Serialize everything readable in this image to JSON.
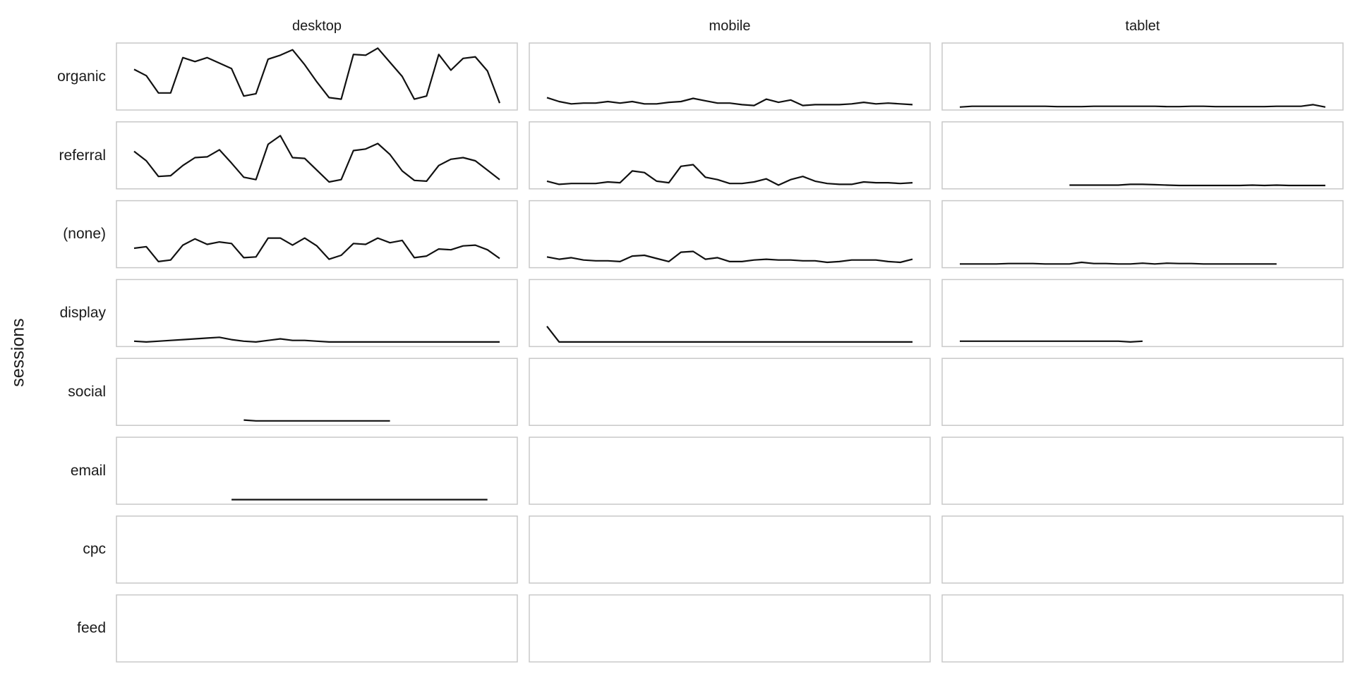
{
  "chart_data": {
    "type": "line",
    "layout": "facet-grid",
    "ylabel": "sessions",
    "xlabel": "",
    "line_color": "#111111",
    "frame_color": "#c8c8c8",
    "shared_y": true,
    "ylim": [
      0,
      80
    ],
    "x_count": 31,
    "columns": [
      "desktop",
      "mobile",
      "tablet"
    ],
    "rows": [
      "organic",
      "referral",
      "(none)",
      "display",
      "social",
      "email",
      "cpc",
      "feed"
    ],
    "series": {
      "organic": {
        "desktop": [
          50,
          42,
          20,
          20,
          65,
          60,
          65,
          58,
          51,
          16,
          19,
          63,
          68,
          75,
          56,
          34,
          14,
          12,
          69,
          68,
          77,
          59,
          41,
          12,
          16,
          69,
          49,
          64,
          66,
          48,
          7
        ],
        "mobile": [
          14,
          9,
          6,
          7,
          7,
          9,
          7,
          9,
          6,
          6,
          8,
          9,
          13,
          10,
          7,
          7,
          5,
          4,
          12,
          8,
          11,
          4,
          5,
          5,
          5,
          6,
          8,
          6,
          7,
          6,
          5
        ],
        "tablet": [
          2,
          3,
          3,
          3,
          3,
          3,
          3,
          3,
          2.5,
          2.5,
          2.5,
          3,
          3,
          3,
          3,
          3,
          3,
          2.5,
          2.5,
          3,
          3,
          2.5,
          2.5,
          2.5,
          2.5,
          2.5,
          3,
          3,
          3,
          5,
          2
        ]
      },
      "referral": {
        "desktop": [
          46,
          34,
          14,
          15,
          28,
          38,
          39,
          48,
          31,
          13,
          10,
          55,
          66,
          38,
          37,
          22,
          7,
          10,
          47,
          49,
          56,
          42,
          21,
          9,
          8,
          28,
          36,
          38,
          34,
          22,
          10
        ],
        "mobile": [
          8,
          4,
          5,
          5,
          5,
          7,
          6,
          21,
          19,
          8,
          6,
          27,
          29,
          13,
          10,
          5,
          5,
          7,
          11,
          3,
          10,
          14,
          8,
          5,
          4,
          4,
          7,
          6,
          6,
          5,
          6
        ],
        "tablet": [
          null,
          null,
          null,
          null,
          null,
          null,
          null,
          null,
          null,
          3,
          3,
          3,
          3,
          3,
          4,
          4,
          3.5,
          3,
          2.5,
          2.5,
          2.5,
          2.5,
          2.5,
          2.5,
          3,
          2.5,
          3,
          2.5,
          2.5,
          2.5,
          2.5
        ]
      },
      "(none)": {
        "desktop": [
          23,
          25,
          6,
          8,
          27,
          35,
          28,
          31,
          29,
          11,
          12,
          36,
          36,
          27,
          36,
          26,
          9,
          14,
          29,
          28,
          36,
          30,
          33,
          11,
          13,
          22,
          21,
          26,
          27,
          21,
          10
        ],
        "mobile": [
          12,
          9,
          11,
          8,
          7,
          7,
          6,
          13,
          14,
          10,
          6,
          18,
          19,
          9,
          11,
          6,
          6,
          8,
          9,
          8,
          8,
          7,
          7,
          5,
          6,
          8,
          8,
          8,
          6,
          5,
          9
        ],
        "tablet": [
          3,
          3,
          3,
          3,
          3.5,
          3.5,
          3.5,
          3,
          3,
          3,
          5,
          3.5,
          3.5,
          3,
          3,
          4,
          3,
          4,
          3.5,
          3.5,
          3,
          3,
          3,
          3,
          3,
          3,
          3,
          null,
          null,
          null,
          null
        ]
      },
      "display": {
        "desktop": [
          5,
          4,
          5,
          6,
          7,
          8,
          9,
          10,
          7,
          5,
          4,
          6,
          8,
          6,
          6,
          5,
          4,
          4,
          4,
          4,
          4,
          4,
          4,
          4,
          4,
          4,
          4,
          4,
          4,
          4,
          4
        ],
        "mobile": [
          24,
          4,
          4,
          4,
          4,
          4,
          4,
          4,
          4,
          4,
          4,
          4,
          4,
          4,
          4,
          4,
          4,
          4,
          4,
          4,
          4,
          4,
          4,
          4,
          4,
          4,
          4,
          4,
          4,
          4,
          4
        ],
        "tablet": [
          5,
          5,
          5,
          5,
          5,
          5,
          5,
          5,
          5,
          5,
          5,
          5,
          5,
          5,
          4,
          5,
          null,
          null,
          null,
          null,
          null,
          null,
          null,
          null,
          null,
          null,
          null,
          null,
          null,
          null,
          null
        ]
      },
      "social": {
        "desktop": [
          null,
          null,
          null,
          null,
          null,
          null,
          null,
          null,
          null,
          5,
          4,
          4,
          4,
          4,
          4,
          4,
          4,
          4,
          4,
          4,
          4,
          4,
          null,
          null,
          null,
          null,
          null,
          null,
          null,
          null,
          null
        ],
        "mobile": [],
        "tablet": []
      },
      "email": {
        "desktop": [
          null,
          null,
          null,
          null,
          null,
          null,
          null,
          null,
          4,
          4,
          4,
          4,
          4,
          4,
          4,
          4,
          4,
          4,
          4,
          4,
          4,
          4,
          4,
          4,
          4,
          4,
          4,
          4,
          4,
          4,
          null
        ],
        "mobile": [],
        "tablet": []
      },
      "cpc": {
        "desktop": [],
        "mobile": [],
        "tablet": []
      },
      "feed": {
        "desktop": [],
        "mobile": [],
        "tablet": []
      }
    }
  }
}
